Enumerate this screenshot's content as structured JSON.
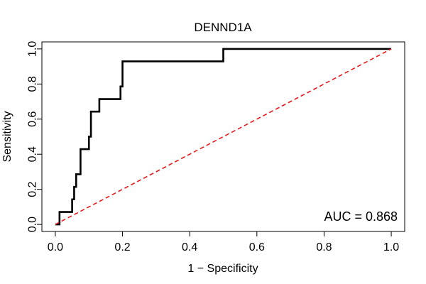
{
  "chart_data": {
    "type": "line",
    "title": "DENND1A",
    "xlabel": "1 − Specificity",
    "ylabel": "Sensitivity",
    "xlim": [
      -0.04,
      1.04
    ],
    "ylim": [
      -0.04,
      1.04
    ],
    "x_ticks": [
      0.0,
      0.2,
      0.4,
      0.6,
      0.8,
      1.0
    ],
    "x_tick_labels": [
      "0.0",
      "0.2",
      "0.4",
      "0.6",
      "0.8",
      "1.0"
    ],
    "y_ticks": [
      0.0,
      0.2,
      0.4,
      0.6,
      0.8,
      1.0
    ],
    "y_tick_labels": [
      "0.0",
      "0.2",
      "0.4",
      "0.6",
      "0.8",
      "1.0"
    ],
    "grid": false,
    "annotation": "AUC = 0.868",
    "series": [
      {
        "color": "#000000",
        "style": "solid",
        "x": [
          0.0,
          0.0,
          0.0125,
          0.0125,
          0.05,
          0.05,
          0.056,
          0.056,
          0.062,
          0.062,
          0.075,
          0.075,
          0.1,
          0.1,
          0.106,
          0.106,
          0.131,
          0.131,
          0.194,
          0.194,
          0.2,
          0.2,
          0.5,
          0.5,
          1.0
        ],
        "y": [
          0.0,
          0.0,
          0.0,
          0.071,
          0.071,
          0.143,
          0.143,
          0.214,
          0.214,
          0.286,
          0.286,
          0.429,
          0.429,
          0.5,
          0.5,
          0.643,
          0.643,
          0.714,
          0.714,
          0.786,
          0.786,
          0.929,
          0.929,
          1.0,
          1.0
        ]
      },
      {
        "color": "#e41a1c",
        "style": "dashed",
        "x": [
          0.0,
          1.0
        ],
        "y": [
          0.0,
          1.0
        ]
      }
    ]
  }
}
